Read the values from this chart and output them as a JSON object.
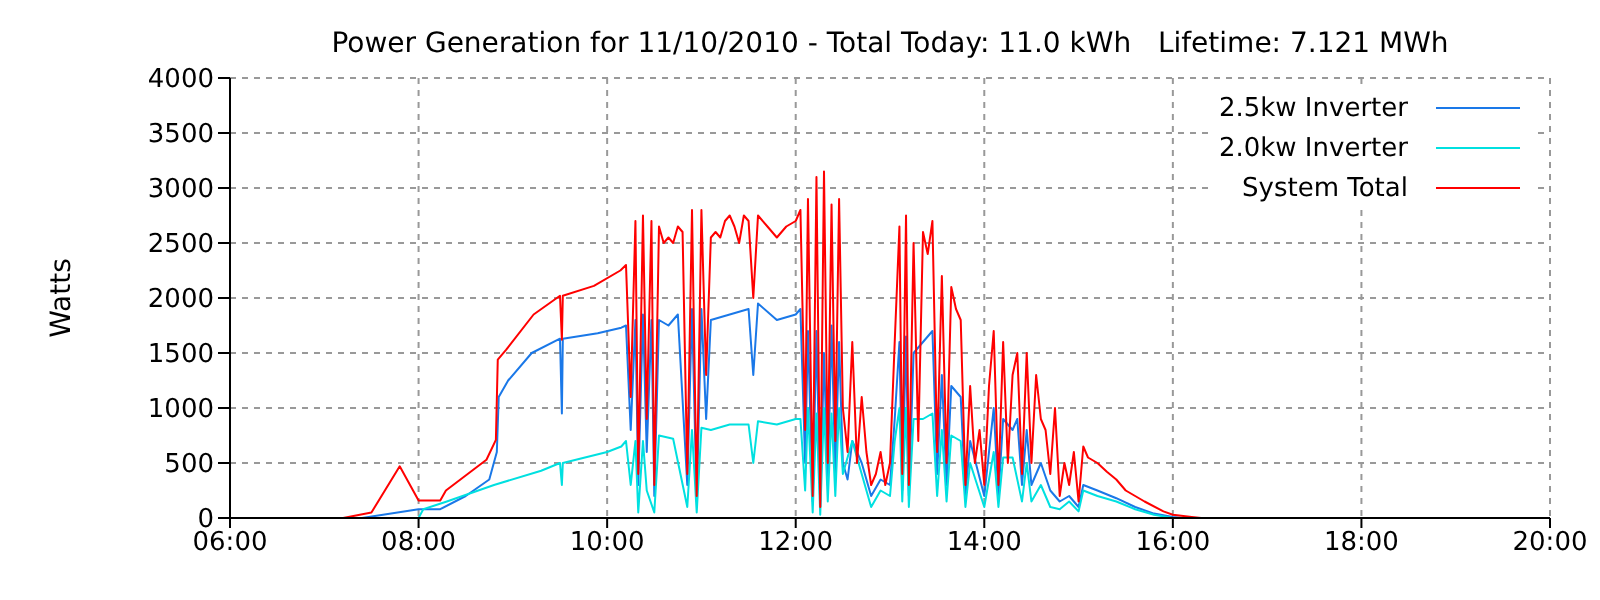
{
  "chart_data": {
    "type": "line",
    "title": "Power Generation for 11/10/2010 - Total Today: 11.0 kWh   Lifetime: 7.121 MWh",
    "ylabel": "Watts",
    "xlim": [
      6,
      20
    ],
    "xticks": [
      {
        "value": 6,
        "label": "06:00"
      },
      {
        "value": 8,
        "label": "08:00"
      },
      {
        "value": 10,
        "label": "10:00"
      },
      {
        "value": 12,
        "label": "12:00"
      },
      {
        "value": 14,
        "label": "14:00"
      },
      {
        "value": 16,
        "label": "16:00"
      },
      {
        "value": 18,
        "label": "18:00"
      },
      {
        "value": 20,
        "label": "20:00"
      }
    ],
    "ylim": [
      0,
      4000
    ],
    "yticks": [
      0,
      500,
      1000,
      1500,
      2000,
      2500,
      3000,
      3500,
      4000
    ],
    "grid": true,
    "legend": "top right",
    "marker": "none",
    "line_style": "solid",
    "series": [
      {
        "name": "2.5kw Inverter",
        "color": "#1a78e8",
        "x": [
          7.4,
          8.0,
          8.23,
          8.5,
          8.75,
          8.83,
          8.85,
          8.95,
          9.2,
          9.5,
          9.52,
          9.53,
          9.9,
          10.15,
          10.2,
          10.25,
          10.3,
          10.33,
          10.38,
          10.42,
          10.47,
          10.5,
          10.55,
          10.65,
          10.75,
          10.85,
          10.9,
          10.95,
          11.0,
          11.05,
          11.1,
          11.3,
          11.5,
          11.55,
          11.6,
          11.8,
          12.0,
          12.05,
          12.1,
          12.13,
          12.18,
          12.22,
          12.26,
          12.3,
          12.34,
          12.38,
          12.42,
          12.46,
          12.5,
          12.55,
          12.6,
          12.7,
          12.8,
          12.9,
          13.0,
          13.05,
          13.1,
          13.13,
          13.17,
          13.2,
          13.25,
          13.35,
          13.45,
          13.5,
          13.55,
          13.6,
          13.65,
          13.75,
          13.8,
          13.85,
          14.0,
          14.1,
          14.15,
          14.2,
          14.3,
          14.35,
          14.4,
          14.45,
          14.5,
          14.6,
          14.7,
          14.8,
          14.9,
          15.0,
          15.05,
          15.2,
          15.4,
          15.6,
          15.8,
          16.0,
          16.1
        ],
        "values": [
          0,
          80,
          80,
          200,
          350,
          600,
          1100,
          1250,
          1500,
          1630,
          950,
          1630,
          1680,
          1730,
          1750,
          800,
          1800,
          300,
          1850,
          600,
          1800,
          200,
          1800,
          1750,
          1850,
          300,
          1900,
          150,
          1900,
          900,
          1800,
          1850,
          1900,
          1300,
          1950,
          1800,
          1850,
          1900,
          500,
          1700,
          150,
          1700,
          100,
          1500,
          300,
          1750,
          400,
          1600,
          500,
          350,
          700,
          500,
          200,
          350,
          300,
          900,
          1600,
          250,
          1650,
          200,
          1500,
          1600,
          1700,
          400,
          1300,
          300,
          1200,
          1100,
          200,
          700,
          200,
          1000,
          200,
          900,
          800,
          900,
          300,
          800,
          300,
          500,
          250,
          150,
          200,
          100,
          300,
          250,
          180,
          100,
          40,
          10,
          0
        ]
      },
      {
        "name": "2.0kw Inverter",
        "color": "#00e0e0",
        "x": [
          8.0,
          8.05,
          8.3,
          8.8,
          9.3,
          9.5,
          9.52,
          9.53,
          10.0,
          10.15,
          10.2,
          10.25,
          10.3,
          10.33,
          10.38,
          10.42,
          10.5,
          10.55,
          10.7,
          10.85,
          10.9,
          10.95,
          11.0,
          11.1,
          11.3,
          11.5,
          11.55,
          11.6,
          11.8,
          12.0,
          12.05,
          12.1,
          12.13,
          12.18,
          12.22,
          12.26,
          12.3,
          12.34,
          12.38,
          12.42,
          12.46,
          12.5,
          12.6,
          12.7,
          12.8,
          12.9,
          13.0,
          13.05,
          13.1,
          13.13,
          13.17,
          13.2,
          13.25,
          13.35,
          13.45,
          13.5,
          13.55,
          13.6,
          13.65,
          13.75,
          13.8,
          13.85,
          14.0,
          14.1,
          14.15,
          14.2,
          14.3,
          14.4,
          14.45,
          14.5,
          14.6,
          14.7,
          14.8,
          14.9,
          15.0,
          15.05,
          15.2,
          15.4,
          15.6,
          15.8,
          16.0
        ],
        "values": [
          0,
          80,
          150,
          300,
          430,
          500,
          300,
          500,
          600,
          650,
          700,
          300,
          700,
          50,
          700,
          250,
          50,
          750,
          720,
          100,
          800,
          50,
          820,
          800,
          850,
          850,
          500,
          880,
          850,
          900,
          900,
          250,
          1000,
          50,
          950,
          30,
          1000,
          150,
          950,
          200,
          1000,
          400,
          700,
          400,
          100,
          250,
          200,
          700,
          1000,
          150,
          1000,
          100,
          900,
          900,
          950,
          200,
          800,
          150,
          750,
          700,
          100,
          500,
          100,
          600,
          100,
          550,
          550,
          150,
          500,
          150,
          300,
          100,
          80,
          150,
          60,
          250,
          200,
          150,
          80,
          30,
          0
        ]
      },
      {
        "name": "System Total",
        "color": "#ff0000",
        "x": [
          6.85,
          7.2,
          7.5,
          7.8,
          8.0,
          8.23,
          8.29,
          8.72,
          8.82,
          8.84,
          8.93,
          9.22,
          9.5,
          9.52,
          9.53,
          9.86,
          10.14,
          10.2,
          10.25,
          10.3,
          10.33,
          10.38,
          10.42,
          10.47,
          10.5,
          10.55,
          10.6,
          10.65,
          10.7,
          10.75,
          10.8,
          10.85,
          10.9,
          10.95,
          11.0,
          11.05,
          11.1,
          11.15,
          11.2,
          11.25,
          11.3,
          11.35,
          11.4,
          11.45,
          11.5,
          11.55,
          11.6,
          11.7,
          11.8,
          11.9,
          12.0,
          12.05,
          12.1,
          12.13,
          12.18,
          12.22,
          12.26,
          12.3,
          12.34,
          12.38,
          12.42,
          12.46,
          12.5,
          12.55,
          12.6,
          12.65,
          12.7,
          12.75,
          12.8,
          12.85,
          12.9,
          12.95,
          13.0,
          13.05,
          13.1,
          13.13,
          13.17,
          13.2,
          13.25,
          13.3,
          13.35,
          13.4,
          13.45,
          13.5,
          13.55,
          13.6,
          13.65,
          13.7,
          13.75,
          13.8,
          13.85,
          13.9,
          13.95,
          14.0,
          14.05,
          14.1,
          14.15,
          14.2,
          14.25,
          14.3,
          14.35,
          14.4,
          14.45,
          14.5,
          14.55,
          14.6,
          14.65,
          14.7,
          14.75,
          14.8,
          14.85,
          14.9,
          14.95,
          15.0,
          15.05,
          15.1,
          15.2,
          15.3,
          15.4,
          15.5,
          15.7,
          15.9,
          16.0,
          16.2,
          16.3
        ],
        "values": [
          0,
          0,
          50,
          470,
          160,
          160,
          250,
          530,
          710,
          1440,
          1530,
          1850,
          2020,
          1620,
          2020,
          2110,
          2250,
          2300,
          1100,
          2700,
          400,
          2750,
          900,
          2700,
          300,
          2650,
          2500,
          2550,
          2500,
          2650,
          2600,
          400,
          2800,
          200,
          2800,
          1300,
          2550,
          2600,
          2550,
          2700,
          2750,
          2650,
          2500,
          2750,
          2700,
          2000,
          2750,
          2650,
          2550,
          2650,
          2700,
          2800,
          800,
          2900,
          200,
          3100,
          100,
          3150,
          500,
          2850,
          700,
          2900,
          1000,
          600,
          1600,
          500,
          1100,
          600,
          300,
          400,
          600,
          300,
          500,
          1600,
          2650,
          400,
          2750,
          300,
          2500,
          700,
          2600,
          2400,
          2700,
          600,
          2200,
          500,
          2100,
          1900,
          1800,
          300,
          1200,
          500,
          800,
          300,
          1200,
          1700,
          300,
          1600,
          500,
          1300,
          1500,
          400,
          1500,
          500,
          1300,
          900,
          800,
          400,
          1000,
          200,
          500,
          300,
          600,
          150,
          650,
          550,
          500,
          420,
          350,
          250,
          150,
          60,
          30,
          10,
          0
        ]
      }
    ]
  }
}
